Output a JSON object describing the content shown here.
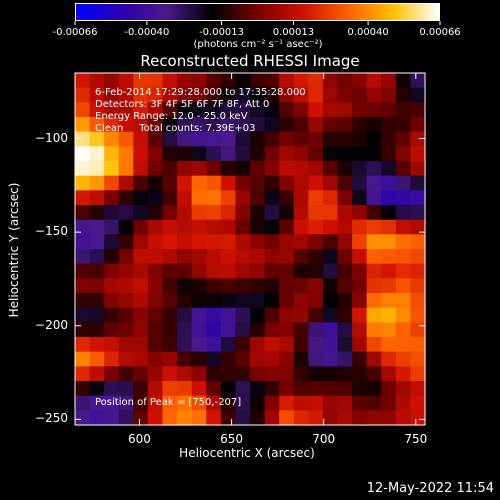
{
  "chart_data": {
    "type": "heatmap",
    "title": "Reconstructed RHESSI Image",
    "xlabel": "Heliocentric X (arcsec)",
    "ylabel": "Heliocentric Y (arcsec)",
    "xlim": [
      565,
      755
    ],
    "ylim": [
      -253,
      -65
    ],
    "x_ticks": [
      600,
      650,
      700,
      750
    ],
    "y_ticks": [
      -100,
      -150,
      -200,
      -250
    ],
    "colorbar": {
      "tick_labels": [
        "-0.00066",
        "-0.00040",
        "-0.00013",
        "0.00013",
        "0.00040",
        "0.00066"
      ],
      "tick_values": [
        -0.00066,
        -0.0004,
        -0.00013,
        0.00013,
        0.0004,
        0.00066
      ],
      "range": [
        -0.00066,
        0.00066
      ],
      "unit": "(photons cm⁻² s⁻¹ asec⁻²)",
      "colors": [
        "#0000ff",
        "#2a00b0",
        "#4a1a8a",
        "#000000",
        "#7a0000",
        "#d01000",
        "#ff6000",
        "#ffc000",
        "#ffffff"
      ]
    },
    "annotations": [
      "6-Feb-2014 17:29:28.000 to 17:35:28.000",
      "Detectors: 3F 4F 5F 6F 7F 8F, Att 0",
      "Energy Range: 12.0 - 25.0 keV",
      "Clean     Total counts: 7.39E+03"
    ],
    "peak_label": "Position of Peak = [750,-207]",
    "peak": [
      750,
      -207
    ]
  },
  "footer": {
    "timestamp": "12-May-2022 11:54"
  }
}
